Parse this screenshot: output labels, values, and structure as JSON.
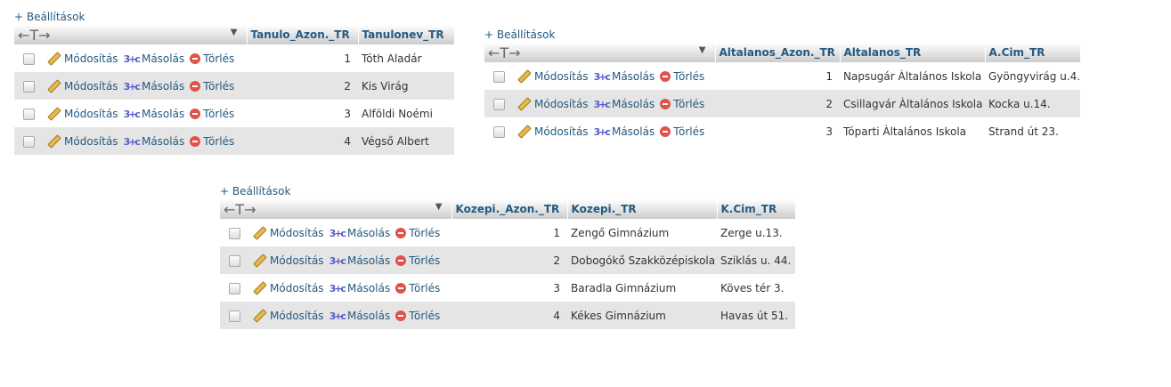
{
  "settings_label": "+ Beállítások",
  "header_arrows": "←T→",
  "actions": {
    "edit": "Módosítás",
    "copy": "Másolás",
    "delete": "Törlés"
  },
  "tables": [
    {
      "columns": [
        "Tanulo_Azon._TR",
        "Tanulonev_TR"
      ],
      "rows": [
        [
          "1",
          "Tóth Aladár"
        ],
        [
          "2",
          "Kis Virág"
        ],
        [
          "3",
          "Alföldi Noémi"
        ],
        [
          "4",
          "Végső Albert"
        ]
      ]
    },
    {
      "columns": [
        "Altalanos_Azon._TR",
        "Altalanos_TR",
        "A.Cim_TR"
      ],
      "rows": [
        [
          "1",
          "Napsugár Àltalános Iskola",
          "Gyöngyvirág u.4."
        ],
        [
          "2",
          "Csillagvár Àltalános Iskola",
          "Kocka u.14."
        ],
        [
          "3",
          "Tóparti Àltalános Iskola",
          "Strand út 23."
        ]
      ]
    },
    {
      "columns": [
        "Kozepi._Azon._TR",
        "Kozepi._TR",
        "K.Cim_TR"
      ],
      "rows": [
        [
          "1",
          "Zengő Gimnázium",
          "Zerge u.13."
        ],
        [
          "2",
          "Dobogókő Szakközépiskola",
          "Sziklás u. 44."
        ],
        [
          "3",
          "Baradla Gimnázium",
          "Köves tér 3."
        ],
        [
          "4",
          "Kékes Gimnázium",
          "Havas út 51."
        ]
      ]
    }
  ]
}
